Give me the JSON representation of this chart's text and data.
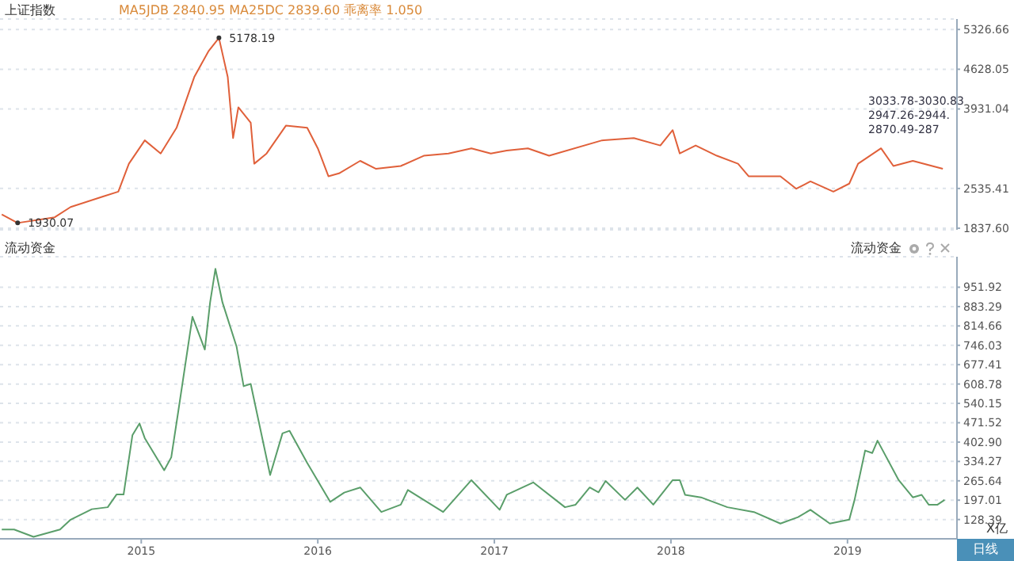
{
  "chart_data": [
    {
      "type": "line",
      "title": "上证指数",
      "subtitle": "MA5JDB 2840.95  MA25DC 2839.60  乖离率 1.050",
      "x": [
        2014.21,
        2014.3,
        2014.51,
        2014.6,
        2014.78,
        2014.87,
        2014.93,
        2015.02,
        2015.11,
        2015.2,
        2015.3,
        2015.38,
        2015.44,
        2015.49,
        2015.52,
        2015.55,
        2015.62,
        2015.64,
        2015.71,
        2015.82,
        2015.94,
        2016.0,
        2016.06,
        2016.12,
        2016.24,
        2016.33,
        2016.47,
        2016.6,
        2016.74,
        2016.87,
        2016.98,
        2017.07,
        2017.19,
        2017.31,
        2017.61,
        2017.79,
        2017.94,
        2018.01,
        2018.05,
        2018.14,
        2018.26,
        2018.38,
        2018.44,
        2018.62,
        2018.71,
        2018.79,
        2018.92,
        2019.01,
        2019.06,
        2019.19,
        2019.26,
        2019.37,
        2019.48,
        2019.54
      ],
      "series": [
        {
          "color": "#e0603a",
          "values": [
            2080,
            1930.07,
            2030,
            2210,
            2390,
            2480,
            2970,
            3380,
            3150,
            3600,
            4490,
            4940,
            5178.19,
            4490,
            3420,
            3960,
            3690,
            2970,
            3150,
            3640,
            3600,
            3240,
            2750,
            2800,
            3020,
            2880,
            2930,
            3110,
            3150,
            3240,
            3150,
            3200,
            3240,
            3110,
            3380,
            3420,
            3290,
            3560,
            3150,
            3290,
            3110,
            2970,
            2750,
            2750,
            2530,
            2660,
            2480,
            2620,
            2970,
            3240,
            2930,
            3020,
            2930,
            2880
          ]
        }
      ],
      "xlim": [
        2014.2,
        2019.62
      ],
      "ylim": [
        1810,
        5510
      ],
      "yticks": [
        {
          "value": 1837.6,
          "label": "1837.60"
        },
        2535.41,
        3931.04,
        4628.05,
        5326.66
      ],
      "tick_labels": "y",
      "grid": "y",
      "annotations": [
        {
          "text": "5178.19",
          "x": 2015.44,
          "y": 5178.19
        },
        {
          "text": "1930.07",
          "x": 2014.3,
          "y": 1930.07
        },
        "3033.78-3030.83",
        "2947.26-2944.",
        "2870.49-287"
      ]
    },
    {
      "type": "line",
      "title": "流动资金",
      "ylabel": "X亿",
      "x": [
        2014.21,
        2014.28,
        2014.39,
        2014.54,
        2014.6,
        2014.72,
        2014.81,
        2014.86,
        2014.9,
        2014.95,
        2014.99,
        2015.02,
        2015.13,
        2015.17,
        2015.21,
        2015.29,
        2015.36,
        2015.39,
        2015.42,
        2015.46,
        2015.54,
        2015.58,
        2015.62,
        2015.73,
        2015.8,
        2015.84,
        2015.94,
        2016.07,
        2016.15,
        2016.24,
        2016.36,
        2016.47,
        2016.51,
        2016.6,
        2016.71,
        2016.87,
        2017.03,
        2017.07,
        2017.22,
        2017.4,
        2017.46,
        2017.54,
        2017.59,
        2017.63,
        2017.74,
        2017.81,
        2017.9,
        2018.01,
        2018.05,
        2018.08,
        2018.17,
        2018.32,
        2018.47,
        2018.62,
        2018.72,
        2018.79,
        2018.9,
        2019.01,
        2019.04,
        2019.1,
        2019.14,
        2019.17,
        2019.29,
        2019.37,
        2019.42,
        2019.46,
        2019.51,
        2019.55
      ],
      "series": [
        {
          "color": "#5a9e6a",
          "values": [
            93,
            93,
            67,
            93,
            128,
            165,
            172,
            217,
            217,
            427,
            469,
            417,
            303,
            349,
            513,
            847,
            731,
            898,
            1017,
            898,
            741,
            601,
            609,
            286,
            434,
            443,
            329,
            191,
            224,
            242,
            155,
            181,
            233,
            198,
            155,
            268,
            163,
            216,
            260,
            172,
            181,
            242,
            225,
            265,
            198,
            242,
            181,
            268,
            268,
            216,
            207,
            172,
            155,
            114,
            137,
            163,
            114,
            128,
            198,
            373,
            364,
            408,
            268,
            207,
            216,
            181,
            181,
            198
          ]
        }
      ],
      "xlim": [
        2014.2,
        2019.62
      ],
      "ylim": [
        60,
        1060
      ],
      "xticks": [
        2015,
        2016,
        2017,
        2018,
        2019
      ],
      "yticks": [
        128.39,
        197.01,
        265.64,
        334.27,
        {
          "value": 402.9,
          "label": "402.90"
        },
        471.52,
        540.15,
        608.78,
        677.41,
        746.03,
        814.66,
        883.29,
        951.92
      ],
      "grid": "y",
      "annotations": [
        "日线"
      ]
    }
  ]
}
